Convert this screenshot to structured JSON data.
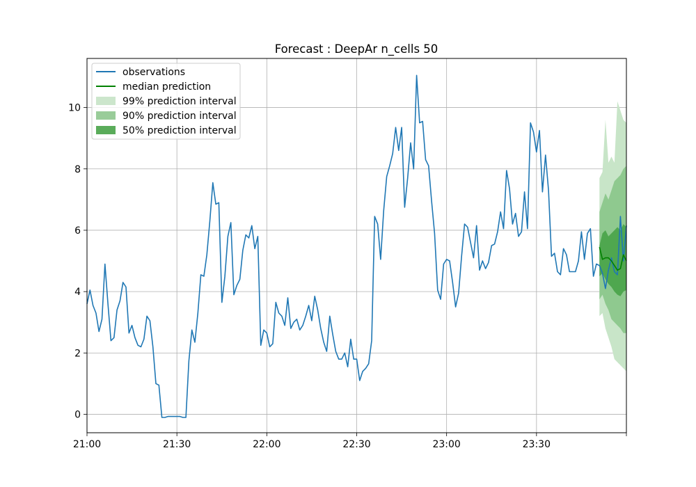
{
  "chart_data": {
    "type": "line",
    "title": "Forecast : DeepAr n_cells 50",
    "xlabel": "",
    "ylabel": "",
    "xlim": [
      "21:00",
      "24:00"
    ],
    "ylim": [
      -0.6,
      11.6
    ],
    "x_ticks": [
      "21:00",
      "21:30",
      "22:00",
      "22:30",
      "23:00",
      "23:30",
      ""
    ],
    "y_ticks": [
      0,
      2,
      4,
      6,
      8,
      10
    ],
    "grid": true,
    "legend_position": "top-left",
    "legend": [
      {
        "label": "observations",
        "kind": "line",
        "color": "#1f77b4"
      },
      {
        "label": "median prediction",
        "kind": "line",
        "color": "#008000"
      },
      {
        "label": "99% prediction interval",
        "kind": "patch",
        "color": "#cce6cc"
      },
      {
        "label": "90% prediction interval",
        "kind": "patch",
        "color": "#99cc99"
      },
      {
        "label": "50% prediction interval",
        "kind": "patch",
        "color": "#5aac5a"
      }
    ],
    "series": [
      {
        "name": "observations",
        "color": "#1f77b4",
        "x": [
          "21:00",
          "21:01",
          "21:02",
          "21:03",
          "21:04",
          "21:05",
          "21:06",
          "21:07",
          "21:08",
          "21:09",
          "21:10",
          "21:11",
          "21:12",
          "21:13",
          "21:14",
          "21:15",
          "21:16",
          "21:17",
          "21:18",
          "21:19",
          "21:20",
          "21:21",
          "21:22",
          "21:23",
          "21:24",
          "21:25",
          "21:26",
          "21:27",
          "21:28",
          "21:29",
          "21:30",
          "21:31",
          "21:32",
          "21:33",
          "21:34",
          "21:35",
          "21:36",
          "21:37",
          "21:38",
          "21:39",
          "21:40",
          "21:41",
          "21:42",
          "21:43",
          "21:44",
          "21:45",
          "21:46",
          "21:47",
          "21:48",
          "21:49",
          "21:50",
          "21:51",
          "21:52",
          "21:53",
          "21:54",
          "21:55",
          "21:56",
          "21:57",
          "21:58",
          "21:59",
          "22:00",
          "22:01",
          "22:02",
          "22:03",
          "22:04",
          "22:05",
          "22:06",
          "22:07",
          "22:08",
          "22:09",
          "22:10",
          "22:11",
          "22:12",
          "22:13",
          "22:14",
          "22:15",
          "22:16",
          "22:17",
          "22:18",
          "22:19",
          "22:20",
          "22:21",
          "22:22",
          "22:23",
          "22:24",
          "22:25",
          "22:26",
          "22:27",
          "22:28",
          "22:29",
          "22:30",
          "22:31",
          "22:32",
          "22:33",
          "22:34",
          "22:35",
          "22:36",
          "22:37",
          "22:38",
          "22:39",
          "22:40",
          "22:41",
          "22:42",
          "22:43",
          "22:44",
          "22:45",
          "22:46",
          "22:47",
          "22:48",
          "22:49",
          "22:50",
          "22:51",
          "22:52",
          "22:53",
          "22:54",
          "22:55",
          "22:56",
          "22:57",
          "22:58",
          "22:59",
          "23:00",
          "23:01",
          "23:02",
          "23:03",
          "23:04",
          "23:05",
          "23:06",
          "23:07",
          "23:08",
          "23:09",
          "23:10",
          "23:11",
          "23:12",
          "23:13",
          "23:14",
          "23:15",
          "23:16",
          "23:17",
          "23:18",
          "23:19",
          "23:20",
          "23:21",
          "23:22",
          "23:23",
          "23:24",
          "23:25",
          "23:26",
          "23:27",
          "23:28",
          "23:29",
          "23:30",
          "23:31",
          "23:32",
          "23:33",
          "23:34",
          "23:35",
          "23:36",
          "23:37",
          "23:38",
          "23:39",
          "23:40",
          "23:41",
          "23:42",
          "23:43",
          "23:44",
          "23:45",
          "23:46",
          "23:47",
          "23:48",
          "23:49",
          "23:50",
          "23:51",
          "23:52",
          "23:53",
          "23:54",
          "23:55",
          "23:56",
          "23:57",
          "23:58",
          "23:59",
          "24:00"
        ],
        "y": [
          3.6,
          4.05,
          3.55,
          3.3,
          2.7,
          3.1,
          4.9,
          3.6,
          2.4,
          2.5,
          3.4,
          3.7,
          4.3,
          4.15,
          2.65,
          2.9,
          2.5,
          2.25,
          2.2,
          2.45,
          3.2,
          3.05,
          2.2,
          1.0,
          0.95,
          -0.1,
          -0.1,
          -0.07,
          -0.07,
          -0.07,
          -0.07,
          -0.07,
          -0.1,
          -0.1,
          1.75,
          2.75,
          2.35,
          3.3,
          4.55,
          4.5,
          5.2,
          6.3,
          7.55,
          6.85,
          6.9,
          3.65,
          4.5,
          5.8,
          6.25,
          3.9,
          4.2,
          4.4,
          5.35,
          5.85,
          5.75,
          6.15,
          5.4,
          5.8,
          2.25,
          2.75,
          2.65,
          2.2,
          2.3,
          3.65,
          3.3,
          3.2,
          2.9,
          3.8,
          2.8,
          3.0,
          3.1,
          2.75,
          2.9,
          3.2,
          3.55,
          3.05,
          3.85,
          3.4,
          2.8,
          2.35,
          2.05,
          3.2,
          2.6,
          2.05,
          1.8,
          1.8,
          2.0,
          1.55,
          2.45,
          1.8,
          1.8,
          1.1,
          1.4,
          1.5,
          1.65,
          2.4,
          6.45,
          6.2,
          5.05,
          6.65,
          7.75,
          8.1,
          8.5,
          9.35,
          8.6,
          9.35,
          6.75,
          7.7,
          8.85,
          8.0,
          11.05,
          9.5,
          9.55,
          8.3,
          8.1,
          6.95,
          5.9,
          4.05,
          3.75,
          4.9,
          5.05,
          5.0,
          4.3,
          3.5,
          3.95,
          5.15,
          6.2,
          6.1,
          5.6,
          5.1,
          6.15,
          4.7,
          5.0,
          4.75,
          4.95,
          5.5,
          5.55,
          5.95,
          6.6,
          6.05,
          7.95,
          7.35,
          6.2,
          6.55,
          5.8,
          5.95,
          7.25,
          6.05,
          9.5,
          9.2,
          8.55,
          9.25,
          7.25,
          8.45,
          7.3,
          5.15,
          5.25,
          4.65,
          4.55,
          5.4,
          5.2,
          4.65,
          4.65,
          4.65,
          5.0,
          5.95,
          5.05,
          5.9,
          6.05,
          4.5,
          4.9,
          4.85,
          4.6,
          4.1,
          4.7,
          5.1,
          4.65,
          4.55,
          6.45,
          5.0,
          6.15
        ]
      },
      {
        "name": "median prediction",
        "color": "#008000",
        "x": [
          "23:51",
          "23:52",
          "23:53",
          "23:54",
          "23:55",
          "23:56",
          "23:57",
          "23:58",
          "23:59",
          "24:00"
        ],
        "y": [
          5.45,
          5.05,
          5.1,
          5.1,
          5.0,
          4.85,
          4.7,
          4.75,
          5.2,
          5.0
        ]
      }
    ],
    "prediction_intervals": {
      "x": [
        "23:51",
        "23:52",
        "23:53",
        "23:54",
        "23:55",
        "23:56",
        "23:57",
        "23:58",
        "23:59",
        "24:00"
      ],
      "bands": [
        {
          "name": "99% prediction interval",
          "color": "#c8e5c8",
          "lower": [
            3.2,
            3.3,
            2.8,
            2.5,
            2.2,
            1.8,
            1.7,
            1.6,
            1.5,
            1.4
          ],
          "upper": [
            7.7,
            7.9,
            9.6,
            8.2,
            8.4,
            8.2,
            10.2,
            9.9,
            9.6,
            9.5
          ]
        },
        {
          "name": "90% prediction interval",
          "color": "#8fc98f",
          "lower": [
            3.75,
            3.9,
            3.6,
            3.4,
            3.1,
            3.0,
            2.9,
            2.8,
            2.65,
            2.65
          ],
          "upper": [
            6.6,
            6.9,
            7.2,
            7.0,
            7.3,
            7.6,
            7.7,
            7.8,
            8.0,
            8.1
          ]
        },
        {
          "name": "50% prediction interval",
          "color": "#4fa74f",
          "lower": [
            4.5,
            4.6,
            4.4,
            4.25,
            4.15,
            4.0,
            3.9,
            3.85,
            4.0,
            4.05
          ],
          "upper": [
            5.5,
            5.9,
            6.0,
            5.8,
            5.9,
            6.0,
            6.1,
            6.0,
            6.2,
            6.1
          ]
        }
      ]
    }
  }
}
